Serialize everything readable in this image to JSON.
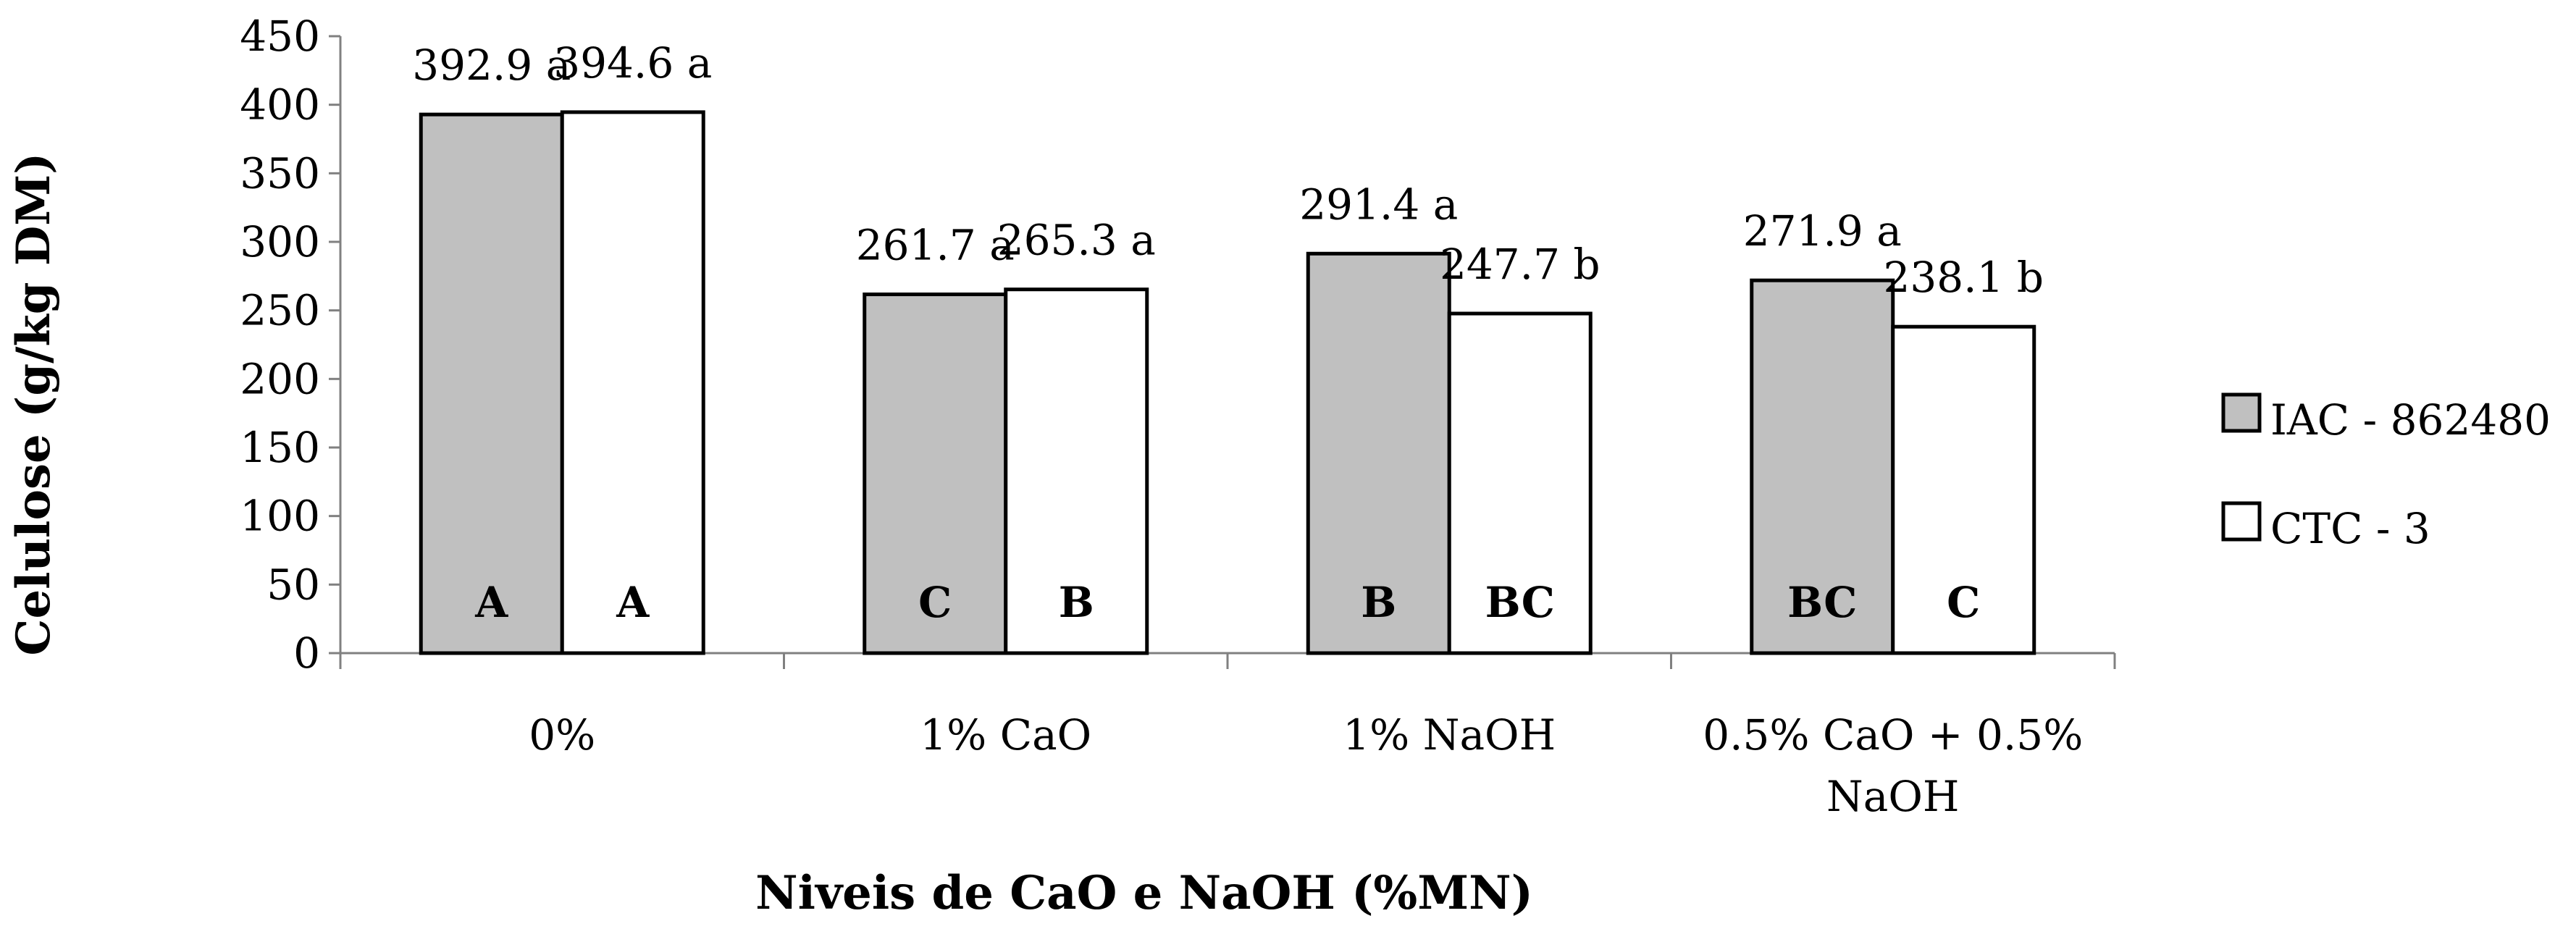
{
  "chart_data": {
    "type": "bar",
    "title": "",
    "xlabel": "Niveis de CaO e NaOH (%MN)",
    "ylabel": "Celulose (g/kg DM)",
    "ylim": [
      0,
      450
    ],
    "yticks": [
      0,
      50,
      100,
      150,
      200,
      250,
      300,
      350,
      400,
      450
    ],
    "categories": [
      [
        "0%"
      ],
      [
        "1% CaO"
      ],
      [
        "1% NaOH"
      ],
      [
        "0.5% CaO + 0.5%",
        "NaOH"
      ]
    ],
    "series": [
      {
        "name": "IAC - 862480",
        "color": "#c0c0c0",
        "values": [
          392.9,
          261.7,
          291.4,
          271.9
        ],
        "labels": [
          "392.9 a",
          "261.7 a",
          "291.4 a",
          "271.9 a"
        ],
        "letters": [
          "A",
          "C",
          "B",
          "BC"
        ]
      },
      {
        "name": "CTC - 3",
        "color": "#ffffff",
        "values": [
          394.6,
          265.3,
          247.7,
          238.1
        ],
        "labels": [
          "394.6 a",
          "265.3 a",
          "247.7 b",
          "238.1 b"
        ],
        "letters": [
          "A",
          "B",
          "BC",
          "C"
        ]
      }
    ],
    "legend_position": "right",
    "grid": false
  }
}
